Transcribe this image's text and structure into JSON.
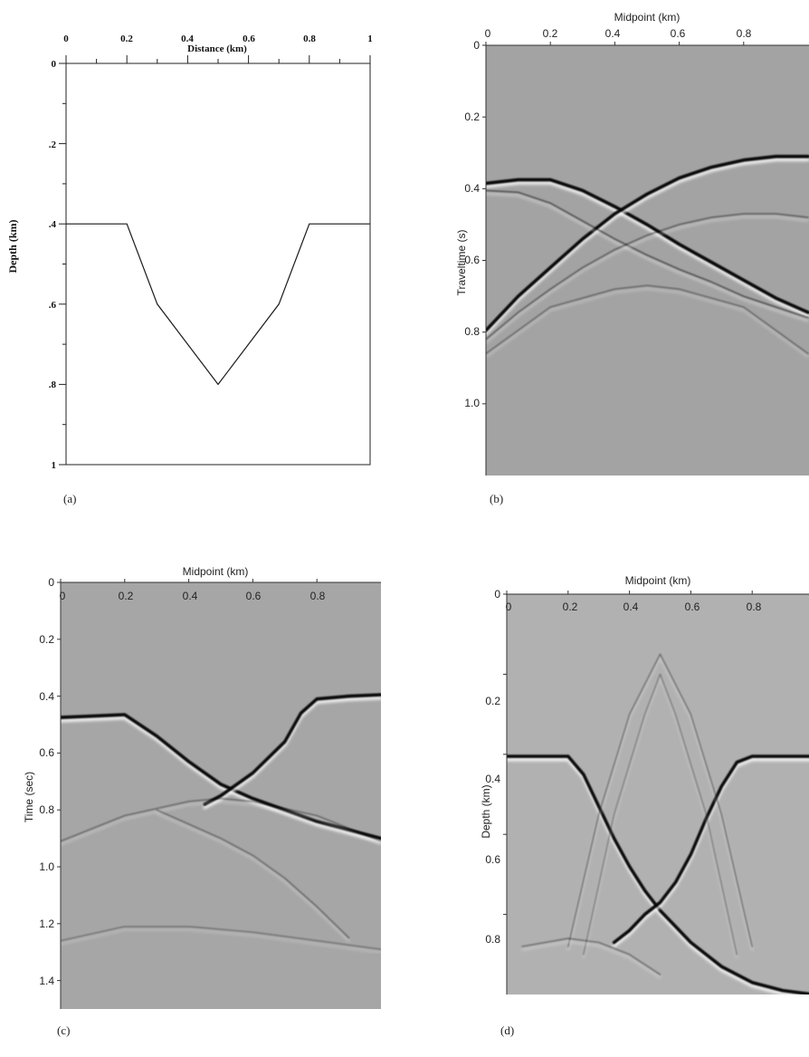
{
  "panels": {
    "a": {
      "tag": "(a)",
      "title": "Distance (km)",
      "ylabel": "Depth (km)",
      "xticks": [
        "0",
        "0.2",
        "0.4",
        "0.6",
        "0.8",
        "1"
      ],
      "yticks": [
        "0",
        ".2",
        ".4",
        ".6",
        ".8",
        "1"
      ]
    },
    "b": {
      "tag": "(b)",
      "title": "Midpoint (km)",
      "ylabel": "Traveltime (s)",
      "xticks": [
        "0",
        "0.2",
        "0.4",
        "0.6",
        "0.8"
      ],
      "yticks": [
        "0",
        "0.2",
        "0.4",
        "0.6",
        "0.8",
        "1.0"
      ]
    },
    "c": {
      "tag": "(c)",
      "title": "Midpoint (km)",
      "ylabel": "Time (sec)",
      "xticks": [
        "0",
        "0.2",
        "0.4",
        "0.6",
        "0.8"
      ],
      "yticks": [
        "0",
        "0.2",
        "0.4",
        "0.6",
        "0.8",
        "1.0",
        "1.2",
        "1.4"
      ]
    },
    "d": {
      "tag": "(d)",
      "title": "Midpoint (km)",
      "ylabel": "Depth (km)",
      "xticks": [
        "0",
        "0.2",
        "0.4",
        "0.6",
        "0.8"
      ],
      "yticks": [
        "0",
        "0.2",
        "0.4",
        "0.6",
        "0.8"
      ]
    }
  },
  "chart_data": [
    {
      "panel": "a",
      "type": "line",
      "title": "Distance (km)",
      "xlabel": "Distance (km)",
      "ylabel": "Depth (km)",
      "xlim": [
        0,
        1
      ],
      "ylim": [
        0,
        1
      ],
      "y_inverted": true,
      "xtick_values": [
        0,
        0.2,
        0.4,
        0.6,
        0.8,
        1
      ],
      "ytick_values": [
        0,
        0.2,
        0.4,
        0.6,
        0.8,
        1
      ],
      "series": [
        {
          "x": [
            0,
            0.2,
            0.3,
            0.5,
            0.7,
            0.8,
            1
          ],
          "y": [
            0.4,
            0.4,
            0.6,
            0.8,
            0.6,
            0.4,
            0.4
          ]
        }
      ]
    },
    {
      "panel": "b",
      "type": "heatmap",
      "title": "Midpoint (km)",
      "xlabel": "Midpoint (km)",
      "ylabel": "Traveltime (s)",
      "xlim": [
        0,
        1
      ],
      "ylim": [
        0,
        1.2
      ],
      "y_inverted": true,
      "xtick_values": [
        0,
        0.2,
        0.4,
        0.6,
        0.8
      ],
      "ytick_values": [
        0,
        0.2,
        0.4,
        0.6,
        0.8,
        1.0
      ],
      "background": "#a3a3a3",
      "events": [
        {
          "x": [
            0,
            0.1,
            0.2,
            0.3,
            0.4,
            0.5,
            0.6,
            0.7,
            0.8,
            0.9,
            1.0
          ],
          "y": [
            0.385,
            0.375,
            0.375,
            0.405,
            0.45,
            0.5,
            0.555,
            0.605,
            0.655,
            0.705,
            0.745
          ],
          "strength": 1.0
        },
        {
          "x": [
            0,
            0.1,
            0.2,
            0.3,
            0.4,
            0.5,
            0.6,
            0.7,
            0.8,
            0.9,
            1.0
          ],
          "y": [
            0.795,
            0.7,
            0.62,
            0.54,
            0.47,
            0.415,
            0.37,
            0.34,
            0.32,
            0.31,
            0.31
          ],
          "strength": 1.0
        },
        {
          "x": [
            0,
            0.1,
            0.2,
            0.3,
            0.4,
            0.5,
            0.6,
            0.7,
            0.8,
            0.9,
            1.0
          ],
          "y": [
            0.405,
            0.41,
            0.44,
            0.49,
            0.54,
            0.585,
            0.625,
            0.66,
            0.7,
            0.73,
            0.76
          ],
          "strength": 0.35
        },
        {
          "x": [
            0,
            0.1,
            0.2,
            0.3,
            0.4,
            0.5,
            0.6,
            0.7,
            0.8,
            0.9,
            1.0
          ],
          "y": [
            0.82,
            0.745,
            0.68,
            0.62,
            0.57,
            0.53,
            0.5,
            0.48,
            0.47,
            0.47,
            0.48
          ],
          "strength": 0.3
        },
        {
          "x": [
            0,
            0.2,
            0.4,
            0.5,
            0.6,
            0.8,
            1.0
          ],
          "y": [
            0.86,
            0.73,
            0.68,
            0.67,
            0.68,
            0.73,
            0.86
          ],
          "strength": 0.25
        }
      ]
    },
    {
      "panel": "c",
      "type": "heatmap",
      "title": "Midpoint (km)",
      "xlabel": "Midpoint (km)",
      "ylabel": "Time (sec)",
      "xlim": [
        0,
        1
      ],
      "ylim": [
        0,
        1.5
      ],
      "y_inverted": true,
      "xtick_values": [
        0,
        0.2,
        0.4,
        0.6,
        0.8
      ],
      "ytick_values": [
        0,
        0.2,
        0.4,
        0.6,
        0.8,
        1.0,
        1.2,
        1.4
      ],
      "background": "#a6a6a6",
      "events": [
        {
          "x": [
            0,
            0.1,
            0.2,
            0.3,
            0.4,
            0.5,
            0.6,
            0.7,
            0.8,
            0.9,
            1.0
          ],
          "y": [
            0.475,
            0.47,
            0.465,
            0.54,
            0.63,
            0.71,
            0.76,
            0.8,
            0.84,
            0.87,
            0.9
          ],
          "strength": 1.0
        },
        {
          "x": [
            0.45,
            0.5,
            0.6,
            0.7,
            0.75,
            0.8,
            0.9,
            1.0
          ],
          "y": [
            0.78,
            0.75,
            0.67,
            0.56,
            0.46,
            0.41,
            0.4,
            0.395
          ],
          "strength": 0.9
        },
        {
          "x": [
            0,
            0.2,
            0.4,
            0.5,
            0.6,
            0.8,
            1.0
          ],
          "y": [
            0.91,
            0.82,
            0.77,
            0.76,
            0.77,
            0.82,
            0.91
          ],
          "strength": 0.25
        },
        {
          "x": [
            0.3,
            0.4,
            0.5,
            0.6,
            0.7,
            0.8,
            0.9
          ],
          "y": [
            0.8,
            0.85,
            0.9,
            0.96,
            1.04,
            1.14,
            1.25
          ],
          "strength": 0.25
        },
        {
          "x": [
            0,
            0.2,
            0.4,
            0.5,
            0.6,
            0.8,
            1.0
          ],
          "y": [
            1.26,
            1.21,
            1.21,
            1.22,
            1.23,
            1.26,
            1.29
          ],
          "strength": 0.2
        }
      ]
    },
    {
      "panel": "d",
      "type": "heatmap",
      "title": "Midpoint (km)",
      "xlabel": "Midpoint (km)",
      "ylabel": "Depth (km)",
      "xlim": [
        0,
        1
      ],
      "ylim": [
        0,
        1
      ],
      "y_inverted": true,
      "xtick_values": [
        0,
        0.2,
        0.4,
        0.6,
        0.8
      ],
      "ytick_values": [
        0,
        0.2,
        0.4,
        0.6,
        0.8
      ],
      "background": "#b1b1b1",
      "events": [
        {
          "x": [
            0,
            0.1,
            0.2,
            0.25,
            0.3,
            0.35,
            0.4,
            0.45,
            0.5,
            0.55,
            0.6,
            0.7,
            0.8,
            0.9,
            1.0
          ],
          "y": [
            0.405,
            0.405,
            0.405,
            0.45,
            0.53,
            0.61,
            0.68,
            0.74,
            0.79,
            0.83,
            0.87,
            0.93,
            0.97,
            0.99,
            1.0
          ],
          "strength": 1.0
        },
        {
          "x": [
            0.35,
            0.4,
            0.45,
            0.5,
            0.55,
            0.6,
            0.65,
            0.7,
            0.75,
            0.8,
            0.9,
            1.0
          ],
          "y": [
            0.87,
            0.84,
            0.8,
            0.77,
            0.72,
            0.65,
            0.56,
            0.48,
            0.42,
            0.405,
            0.405,
            0.405
          ],
          "strength": 0.9
        },
        {
          "x": [
            0.2,
            0.3,
            0.4,
            0.5,
            0.6,
            0.7,
            0.8
          ],
          "y": [
            0.88,
            0.55,
            0.3,
            0.15,
            0.3,
            0.55,
            0.88
          ],
          "strength": 0.25
        },
        {
          "x": [
            0.25,
            0.35,
            0.45,
            0.5,
            0.55,
            0.65,
            0.75
          ],
          "y": [
            0.9,
            0.55,
            0.3,
            0.2,
            0.3,
            0.55,
            0.9
          ],
          "strength": 0.2
        },
        {
          "x": [
            0.05,
            0.2,
            0.3,
            0.4,
            0.5
          ],
          "y": [
            0.88,
            0.86,
            0.87,
            0.9,
            0.95
          ],
          "strength": 0.25
        }
      ]
    }
  ]
}
